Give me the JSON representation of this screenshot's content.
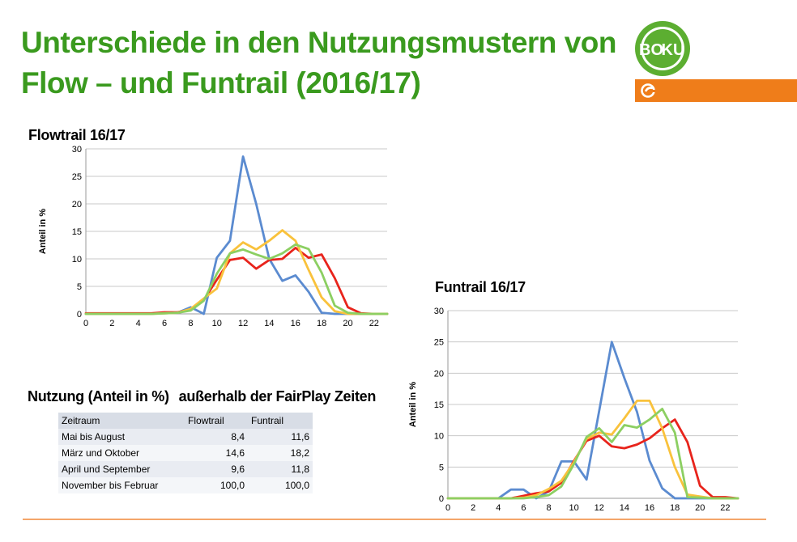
{
  "slide": {
    "title_line1": "Unterschiede in den Nutzungsmustern von",
    "title_line2": "Flow – und Funtrail (2016/17)",
    "logo_text_bo": "BO",
    "logo_text_ku": "KU"
  },
  "colors": {
    "title_green": "#3a9a1e",
    "orange": "#ef7d1a",
    "series_blue": "#5b8bd0",
    "series_red": "#e8241c",
    "series_yellow": "#f9c23c",
    "series_green": "#8ccf62"
  },
  "chart_data": [
    {
      "type": "line",
      "title": "Flowtrail 16/17",
      "ylabel": "Anteil in %",
      "xlabel": "",
      "xlim": [
        0,
        23
      ],
      "ylim": [
        0,
        30
      ],
      "xticks": [
        0,
        2,
        4,
        6,
        8,
        10,
        12,
        14,
        16,
        18,
        20,
        22
      ],
      "yticks": [
        0,
        5,
        10,
        15,
        20,
        25,
        30
      ],
      "grid": true,
      "x": [
        0,
        1,
        2,
        3,
        4,
        5,
        6,
        7,
        8,
        9,
        10,
        11,
        12,
        13,
        14,
        15,
        16,
        17,
        18,
        19,
        20,
        21,
        22,
        23
      ],
      "series": [
        {
          "name": "blue",
          "color": "#5b8bd0",
          "values": [
            0,
            0,
            0,
            0,
            0,
            0,
            0.2,
            0.2,
            1.2,
            0,
            10.2,
            13.3,
            28.6,
            20,
            10,
            6,
            7,
            4,
            0.2,
            0,
            0,
            0,
            0,
            0
          ]
        },
        {
          "name": "red",
          "color": "#e8241c",
          "values": [
            0.1,
            0.1,
            0.1,
            0.1,
            0.1,
            0.1,
            0.3,
            0.3,
            0.8,
            2.5,
            6.2,
            9.8,
            10.2,
            8.2,
            9.8,
            10,
            12,
            10.2,
            10.8,
            6.5,
            1.2,
            0.1,
            0,
            0
          ]
        },
        {
          "name": "yellow",
          "color": "#f9c23c",
          "values": [
            0,
            0,
            0,
            0,
            0,
            0,
            0.1,
            0.2,
            0.9,
            2.8,
            4.6,
            11,
            13,
            11.7,
            13.3,
            15.2,
            13.3,
            8,
            3,
            0.5,
            0,
            0,
            0,
            0
          ]
        },
        {
          "name": "green",
          "color": "#8ccf62",
          "values": [
            0,
            0,
            0,
            0,
            0,
            0,
            0.1,
            0.2,
            0.6,
            2.4,
            7.3,
            11,
            11.7,
            10.8,
            10,
            11,
            12.6,
            11.8,
            7.5,
            1.5,
            0.2,
            0,
            0,
            0
          ]
        }
      ]
    },
    {
      "type": "line",
      "title": "Funtrail 16/17",
      "ylabel": "Anteil in %",
      "xlabel": "",
      "xlim": [
        0,
        23
      ],
      "ylim": [
        0,
        30
      ],
      "xticks": [
        0,
        2,
        4,
        6,
        8,
        10,
        12,
        14,
        16,
        18,
        20,
        22
      ],
      "yticks": [
        0,
        5,
        10,
        15,
        20,
        25,
        30
      ],
      "grid": true,
      "x": [
        0,
        1,
        2,
        3,
        4,
        5,
        6,
        7,
        8,
        9,
        10,
        11,
        12,
        13,
        14,
        15,
        16,
        17,
        18,
        19,
        20,
        21,
        22,
        23
      ],
      "series": [
        {
          "name": "blue",
          "color": "#5b8bd0",
          "values": [
            0,
            0,
            0,
            0,
            0,
            1.4,
            1.4,
            0,
            1.1,
            5.9,
            5.9,
            3,
            14,
            25,
            19.2,
            13.8,
            6,
            1.6,
            0,
            0,
            0,
            0,
            0,
            0
          ]
        },
        {
          "name": "red",
          "color": "#e8241c",
          "values": [
            0,
            0,
            0,
            0,
            0,
            0,
            0.4,
            0.8,
            1.1,
            2.5,
            6,
            9.2,
            10,
            8.3,
            8,
            8.6,
            9.6,
            11.2,
            12.6,
            9,
            2,
            0.2,
            0.2,
            0
          ]
        },
        {
          "name": "yellow",
          "color": "#f9c23c",
          "values": [
            0,
            0,
            0,
            0,
            0,
            0,
            0.1,
            0.5,
            1.5,
            2.8,
            5.8,
            9.5,
            10.5,
            10.2,
            12.8,
            15.6,
            15.6,
            11.2,
            5,
            0.6,
            0.3,
            0,
            0,
            0
          ]
        },
        {
          "name": "green",
          "color": "#8ccf62",
          "values": [
            0,
            0,
            0,
            0,
            0,
            0,
            0,
            0.2,
            0.5,
            1.9,
            5.5,
            9.8,
            11.2,
            9,
            11.7,
            11.3,
            12.6,
            14.3,
            10.5,
            0.2,
            0.1,
            0,
            0,
            0
          ]
        }
      ]
    }
  ],
  "usage": {
    "heading_part1": "Nutzung (Anteil in %)",
    "heading_part2": "außerhalb der FairPlay Zeiten",
    "headers": [
      "Zeitraum",
      "Flowtrail",
      "Funtrail"
    ],
    "rows": [
      {
        "period": "Mai bis August",
        "flowtrail": "8,4",
        "funtrail": "11,6"
      },
      {
        "period": "März und Oktober",
        "flowtrail": "14,6",
        "funtrail": "18,2"
      },
      {
        "period": "April und September",
        "flowtrail": "9,6",
        "funtrail": "11,8"
      },
      {
        "period": "November bis Februar",
        "flowtrail": "100,0",
        "funtrail": "100,0"
      }
    ]
  }
}
